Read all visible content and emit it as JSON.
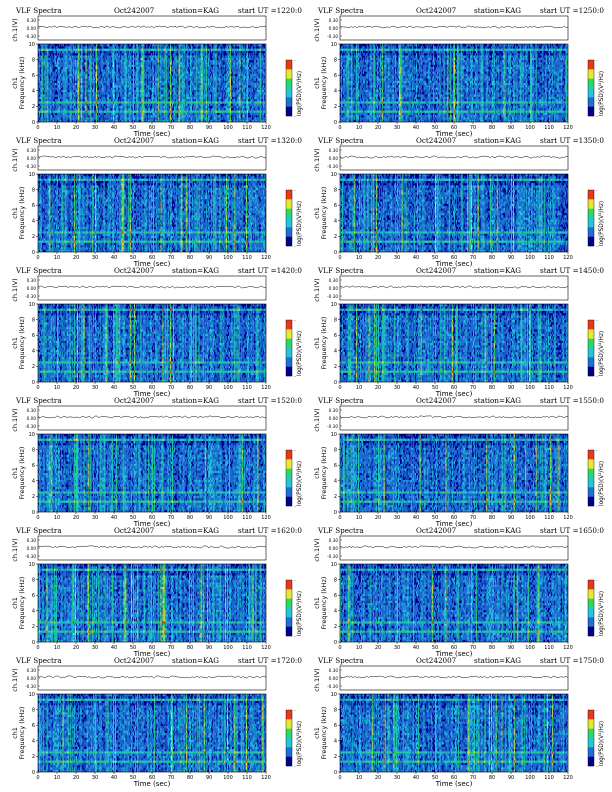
{
  "page": {
    "panels": [
      {
        "title": "VLF Spectra",
        "date": "Oct242007",
        "station": "station=KAG",
        "start": "start UT =1220:0",
        "seed": 11
      },
      {
        "title": "VLF Spectra",
        "date": "Oct242007",
        "station": "station=KAG",
        "start": "start UT =1250:0",
        "seed": 23
      },
      {
        "title": "VLF Spectra",
        "date": "Oct242007",
        "station": "station=KAG",
        "start": "start UT =1320:0",
        "seed": 37
      },
      {
        "title": "VLF Spectra",
        "date": "Oct242007",
        "station": "station=KAG",
        "start": "start UT =1350:0",
        "seed": 41
      },
      {
        "title": "VLF Spectra",
        "date": "Oct242007",
        "station": "station=KAG",
        "start": "start UT =1420:0",
        "seed": 53
      },
      {
        "title": "VLF Spectra",
        "date": "Oct242007",
        "station": "station=KAG",
        "start": "start UT =1450:0",
        "seed": 67
      },
      {
        "title": "VLF Spectra",
        "date": "Oct242007",
        "station": "station=KAG",
        "start": "start UT =1520:0",
        "seed": 71
      },
      {
        "title": "VLF Spectra",
        "date": "Oct242007",
        "station": "station=KAG",
        "start": "start UT =1550:0",
        "seed": 83
      },
      {
        "title": "VLF Spectra",
        "date": "Oct242007",
        "station": "station=KAG",
        "start": "start UT =1620:0",
        "seed": 97
      },
      {
        "title": "VLF Spectra",
        "date": "Oct242007",
        "station": "station=KAG",
        "start": "start UT =1650:0",
        "seed": 101
      },
      {
        "title": "VLF Spectra",
        "date": "Oct242007",
        "station": "station=KAG",
        "start": "start UT =1720:0",
        "seed": 113
      },
      {
        "title": "VLF Spectra",
        "date": "Oct242007",
        "station": "station=KAG",
        "start": "start UT =1750:0",
        "seed": 127
      }
    ]
  },
  "chart_data": {
    "type": "heatmap",
    "xlabel": "Time (sec)",
    "ylabel": "Frequency (kHz)",
    "ylabel_top": "ch1",
    "waveform_label": "ch.1(V)",
    "colorbar_label": "log(PSD)(V²/Hz)",
    "xlim": [
      0,
      120
    ],
    "x_ticks": [
      "0",
      "10",
      "20",
      "30",
      "40",
      "50",
      "60",
      "70",
      "80",
      "90",
      "100",
      "110",
      "120"
    ],
    "ylim": [
      0,
      10
    ],
    "y_ticks": [
      "0",
      "2",
      "4",
      "6",
      "8",
      "10"
    ],
    "waveform_ticks": [
      "0.30",
      "0.00",
      "-0.30"
    ],
    "colorbar_ticks": [
      "-",
      "-"
    ],
    "colors": {
      "low": "#00008c",
      "mid_low": "#1f6fd6",
      "mid": "#22c6d6",
      "mid_high": "#2ad86a",
      "high": "#e8e82c",
      "peak": "#e83a1a"
    }
  }
}
